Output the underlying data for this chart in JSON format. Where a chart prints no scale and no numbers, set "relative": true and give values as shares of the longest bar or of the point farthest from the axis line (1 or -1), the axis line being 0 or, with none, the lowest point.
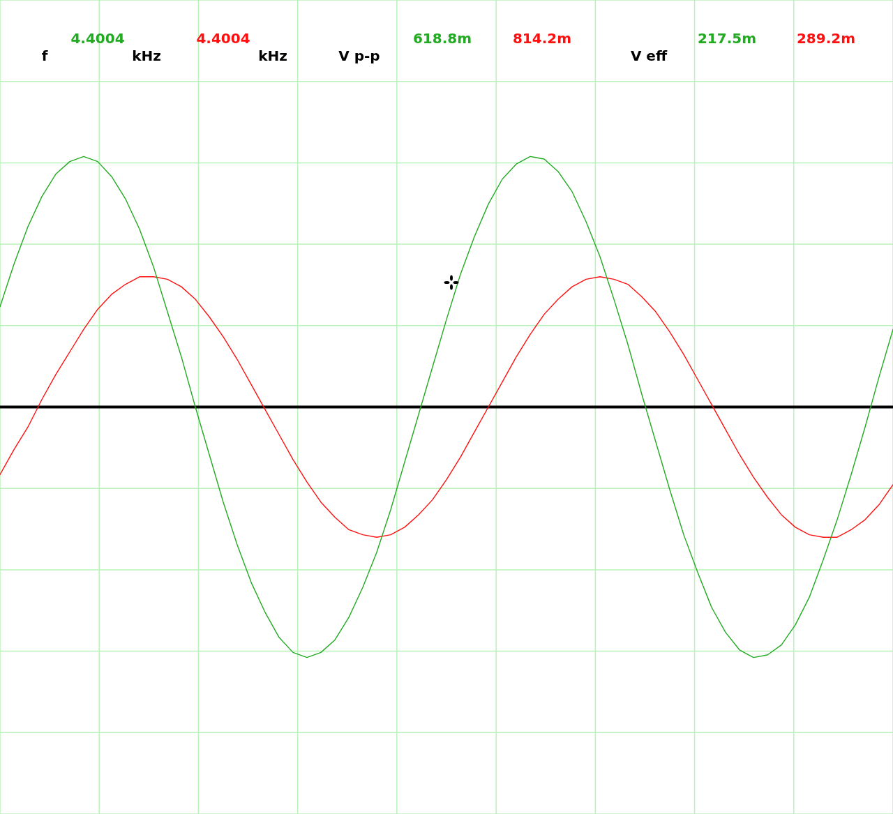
{
  "chart_data": {
    "type": "line",
    "relative": true,
    "grid": true,
    "marker": "none",
    "line_style": "solid",
    "categories": [
      null,
      null,
      null,
      null,
      null,
      null,
      null,
      null,
      null,
      null,
      null,
      null,
      null,
      null,
      null,
      null,
      null,
      null,
      null,
      null,
      null,
      null,
      null,
      null,
      null,
      null,
      null,
      null,
      null,
      null,
      null,
      null,
      null,
      null,
      null,
      null,
      null,
      null,
      null,
      null,
      null,
      null,
      null,
      null,
      null,
      null,
      null,
      null,
      null,
      null,
      null,
      null,
      null,
      null,
      null,
      null,
      null,
      null,
      null,
      null,
      null,
      null,
      null,
      null,
      null
    ],
    "series": [
      {
        "color": "#22aa22",
        "values": [
          0.4,
          0.57,
          0.72,
          0.84,
          0.93,
          0.98,
          1.0,
          0.98,
          0.92,
          0.83,
          0.71,
          0.56,
          0.38,
          0.2,
          0.0,
          -0.19,
          -0.38,
          -0.55,
          -0.7,
          -0.82,
          -0.92,
          -0.98,
          -1.0,
          -0.98,
          -0.93,
          -0.84,
          -0.72,
          -0.58,
          -0.41,
          -0.22,
          -0.03,
          0.16,
          0.35,
          0.53,
          0.68,
          0.81,
          0.91,
          0.97,
          1.0,
          0.99,
          0.94,
          0.86,
          0.74,
          0.6,
          0.43,
          0.25,
          0.05,
          -0.14,
          -0.33,
          -0.51,
          -0.66,
          -0.8,
          -0.9,
          -0.97,
          -1.0,
          -0.99,
          -0.95,
          -0.87,
          -0.76,
          -0.61,
          -0.45,
          -0.27,
          -0.08,
          0.12,
          0.31
        ]
      },
      {
        "color": "#ff1010",
        "values": [
          -0.27,
          -0.17,
          -0.08,
          0.03,
          0.13,
          0.22,
          0.31,
          0.39,
          0.45,
          0.49,
          0.52,
          0.52,
          0.51,
          0.48,
          0.43,
          0.36,
          0.28,
          0.19,
          0.09,
          -0.01,
          -0.11,
          -0.21,
          -0.3,
          -0.38,
          -0.44,
          -0.49,
          -0.51,
          -0.52,
          -0.51,
          -0.48,
          -0.43,
          -0.37,
          -0.29,
          -0.2,
          -0.1,
          0.0,
          0.1,
          0.2,
          0.29,
          0.37,
          0.43,
          0.48,
          0.51,
          0.52,
          0.51,
          0.49,
          0.44,
          0.38,
          0.3,
          0.21,
          0.11,
          0.01,
          -0.09,
          -0.19,
          -0.28,
          -0.36,
          -0.43,
          -0.48,
          -0.51,
          -0.52,
          -0.52,
          -0.49,
          -0.45,
          -0.39,
          -0.31
        ]
      }
    ],
    "annotations": [
      "f",
      "4.4004",
      "kHz",
      "4.4004",
      "kHz",
      "V p-p",
      "618.8m",
      "814.2m",
      "V eff",
      "217.5m",
      "289.2m"
    ]
  }
}
